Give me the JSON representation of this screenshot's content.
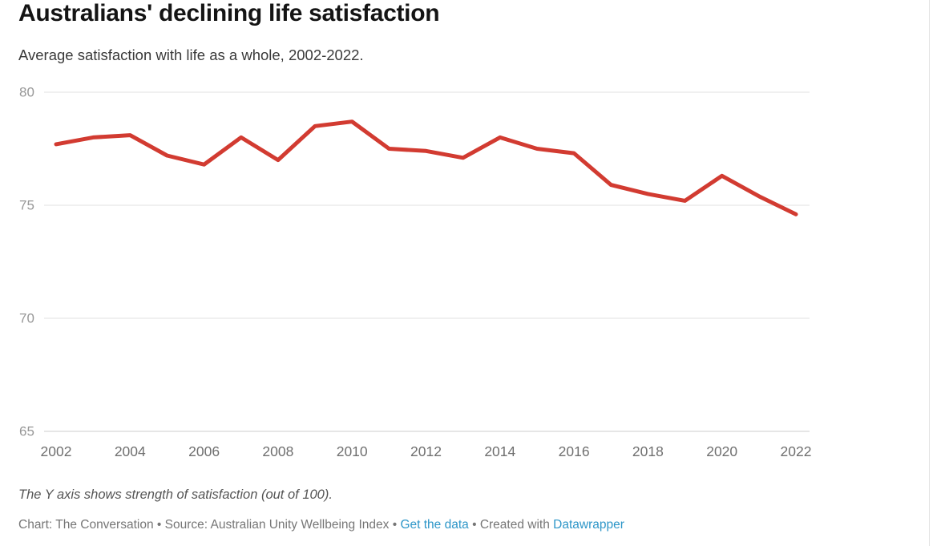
{
  "header": {
    "title": "Australians' declining life satisfaction",
    "subtitle": "Average satisfaction with life as a whole, 2002-2022."
  },
  "chart_data": {
    "type": "line",
    "title": "Australians' declining life satisfaction",
    "subtitle": "Average satisfaction with life as a whole, 2002-2022.",
    "x": [
      2002,
      2003,
      2004,
      2005,
      2006,
      2007,
      2008,
      2009,
      2010,
      2011,
      2012,
      2013,
      2014,
      2015,
      2016,
      2017,
      2018,
      2019,
      2020,
      2021,
      2022
    ],
    "series": [
      {
        "name": "Average satisfaction with life as a whole",
        "values": [
          77.7,
          78.0,
          78.1,
          77.2,
          76.8,
          78.0,
          77.0,
          78.5,
          78.7,
          77.5,
          77.4,
          77.1,
          78.0,
          77.5,
          77.3,
          75.9,
          75.5,
          75.2,
          76.3,
          75.4,
          74.6
        ]
      }
    ],
    "xlabel": "",
    "ylabel": "",
    "ylim": [
      65,
      80
    ],
    "y_ticks": [
      65,
      70,
      75,
      80
    ],
    "x_ticks": [
      2002,
      2004,
      2006,
      2008,
      2010,
      2012,
      2014,
      2016,
      2018,
      2020,
      2022
    ],
    "grid": "horizontal",
    "legend": "none"
  },
  "footer": {
    "note": "The Y axis shows strength of satisfaction (out of 100).",
    "byline": {
      "chart_credit": "Chart: The Conversation",
      "sep": "•",
      "source_credit": "Source: Australian Unity Wellbeing Index",
      "get_data_label": "Get the data",
      "created_with_label": "Created with",
      "tool_label": "Datawrapper"
    }
  },
  "colors": {
    "line": "#d23b31",
    "link": "#2d96c8",
    "grid": "#e6e6e6",
    "baseline": "#d8d8d8",
    "y_tick_text": "#979797",
    "x_tick_text": "#6f6f6f"
  }
}
